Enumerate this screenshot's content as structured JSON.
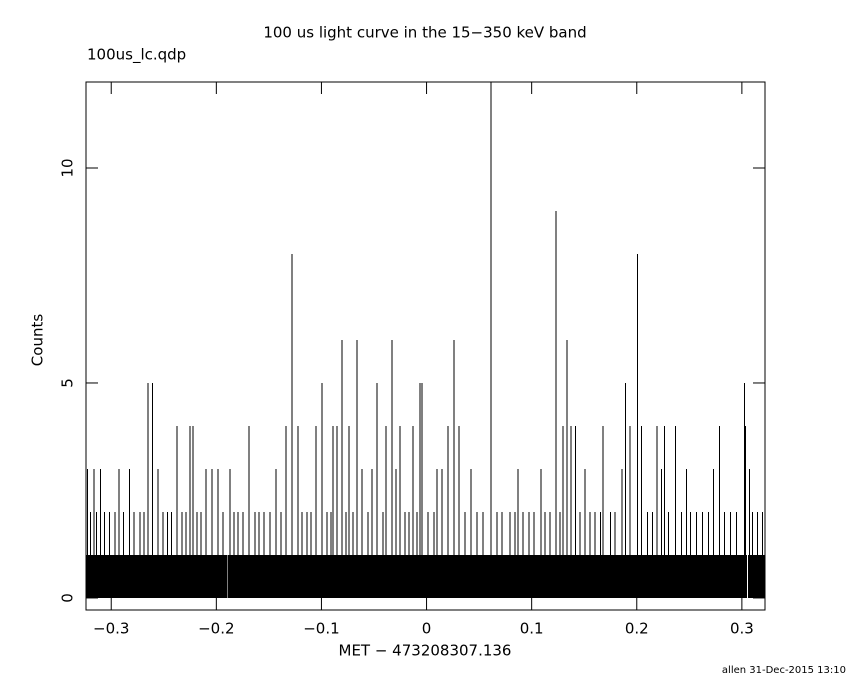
{
  "chart_data": {
    "type": "histogram-step",
    "title": "100 us light curve in the 15−350 keV band",
    "subtitle": "100us_lc.qdp",
    "x_label": "MET − 473208307.136",
    "y_label": "Counts",
    "footer": "allen 31-Dec-2015 13:10",
    "xlim": [
      -0.324,
      0.322
    ],
    "ylim": [
      -0.28,
      12
    ],
    "xticks": [
      {
        "value": -0.3,
        "label": "−0.3"
      },
      {
        "value": -0.2,
        "label": "−0.2"
      },
      {
        "value": -0.1,
        "label": "−0.1"
      },
      0,
      0.1,
      0.2,
      0.3
    ],
    "yticks": [
      0,
      5,
      10
    ],
    "color": "#000000",
    "x": [
      -0.324,
      -0.3229,
      -0.3225,
      -0.32,
      -0.3196,
      -0.3171,
      -0.3167,
      -0.3143,
      -0.3139,
      -0.3105,
      -0.3101,
      -0.3067,
      -0.3063,
      -0.3019,
      -0.3015,
      -0.2971,
      -0.2967,
      -0.2933,
      -0.2929,
      -0.2886,
      -0.2882,
      -0.2829,
      -0.2825,
      -0.279,
      -0.2786,
      -0.2733,
      -0.2729,
      -0.2695,
      -0.2691,
      -0.2657,
      -0.2653,
      -0.261,
      -0.2606,
      -0.2562,
      -0.2558,
      -0.2514,
      -0.251,
      -0.2467,
      -0.2463,
      -0.2429,
      -0.2425,
      -0.2381,
      -0.2377,
      -0.2333,
      -0.2329,
      -0.2295,
      -0.2291,
      -0.2257,
      -0.2253,
      -0.2229,
      -0.2225,
      -0.219,
      -0.2186,
      -0.2152,
      -0.2148,
      -0.2105,
      -0.2101,
      -0.2048,
      -0.2044,
      -0.199,
      -0.1986,
      -0.1943,
      -0.1939,
      -0.1895,
      -0.1887,
      -0.1876,
      -0.1872,
      -0.1838,
      -0.1834,
      -0.18,
      -0.1796,
      -0.1752,
      -0.1748,
      -0.1695,
      -0.1691,
      -0.1638,
      -0.1634,
      -0.16,
      -0.1596,
      -0.1552,
      -0.1548,
      -0.1495,
      -0.1491,
      -0.1438,
      -0.1434,
      -0.139,
      -0.1386,
      -0.1343,
      -0.1339,
      -0.1286,
      -0.1282,
      -0.1229,
      -0.1225,
      -0.119,
      -0.1186,
      -0.1143,
      -0.1139,
      -0.1105,
      -0.1101,
      -0.1057,
      -0.1053,
      -0.1,
      -0.0996,
      -0.0952,
      -0.0948,
      -0.0914,
      -0.091,
      -0.0895,
      -0.0891,
      -0.0857,
      -0.0853,
      -0.081,
      -0.0806,
      -0.0771,
      -0.0767,
      -0.0743,
      -0.0739,
      -0.0705,
      -0.0701,
      -0.0667,
      -0.0663,
      -0.0619,
      -0.0615,
      -0.0562,
      -0.0558,
      -0.0524,
      -0.052,
      -0.0476,
      -0.0472,
      -0.0419,
      -0.0415,
      -0.039,
      -0.0386,
      -0.0333,
      -0.0329,
      -0.0295,
      -0.0291,
      -0.0257,
      -0.0253,
      -0.021,
      -0.0206,
      -0.0171,
      -0.0167,
      -0.0133,
      -0.0129,
      -0.0095,
      -0.0091,
      -0.0067,
      -0.0063,
      -0.0048,
      -0.0044,
      0.001,
      0.0014,
      0.0067,
      0.0071,
      0.0095,
      0.0099,
      0.0143,
      0.0147,
      0.02,
      0.0204,
      0.0257,
      0.0261,
      0.0305,
      0.0309,
      0.0362,
      0.0366,
      0.0419,
      0.0423,
      0.0476,
      0.048,
      0.0533,
      0.0537,
      0.061,
      0.0614,
      0.0667,
      0.0671,
      0.0714,
      0.0718,
      0.079,
      0.0794,
      0.0838,
      0.0842,
      0.0867,
      0.0871,
      0.0914,
      0.0918,
      0.0971,
      0.0975,
      0.1019,
      0.1023,
      0.1086,
      0.109,
      0.1124,
      0.1128,
      0.1171,
      0.1175,
      0.1229,
      0.1233,
      0.1267,
      0.1271,
      0.1295,
      0.1299,
      0.1333,
      0.1337,
      0.1371,
      0.1375,
      0.141,
      0.1414,
      0.1457,
      0.1461,
      0.1505,
      0.1509,
      0.1552,
      0.1556,
      0.16,
      0.1604,
      0.1648,
      0.1652,
      0.1676,
      0.168,
      0.1743,
      0.1747,
      0.179,
      0.1794,
      0.1857,
      0.1861,
      0.1886,
      0.189,
      0.1933,
      0.1937,
      0.2,
      0.2004,
      0.2038,
      0.2042,
      0.2095,
      0.2099,
      0.2143,
      0.2147,
      0.219,
      0.2194,
      0.2229,
      0.2233,
      0.2257,
      0.2261,
      0.2295,
      0.2299,
      0.2362,
      0.2366,
      0.2419,
      0.2423,
      0.2467,
      0.2471,
      0.2505,
      0.2509,
      0.2562,
      0.2566,
      0.2619,
      0.2623,
      0.2676,
      0.268,
      0.2724,
      0.2728,
      0.2781,
      0.2785,
      0.2829,
      0.2833,
      0.2886,
      0.289,
      0.2943,
      0.2947,
      0.3019,
      0.3023,
      0.3029,
      0.3033,
      0.3048,
      0.3056,
      0.3067,
      0.3071,
      0.3095,
      0.3099,
      0.3143,
      0.3147,
      0.319,
      0.3194
    ],
    "values": [
      1,
      3,
      1,
      2,
      1,
      3,
      1,
      2,
      1,
      3,
      1,
      2,
      1,
      2,
      1,
      2,
      1,
      3,
      1,
      2,
      1,
      3,
      1,
      2,
      1,
      2,
      1,
      2,
      1,
      5,
      1,
      5,
      1,
      3,
      1,
      2,
      1,
      2,
      1,
      2,
      1,
      4,
      1,
      2,
      1,
      2,
      1,
      4,
      1,
      4,
      1,
      2,
      1,
      2,
      1,
      3,
      1,
      3,
      1,
      3,
      1,
      2,
      1,
      0,
      1,
      3,
      1,
      2,
      1,
      2,
      1,
      2,
      1,
      4,
      1,
      2,
      1,
      2,
      1,
      2,
      1,
      2,
      1,
      3,
      1,
      2,
      1,
      4,
      1,
      8,
      1,
      4,
      1,
      2,
      1,
      2,
      1,
      2,
      1,
      4,
      1,
      5,
      1,
      2,
      1,
      2,
      1,
      4,
      1,
      4,
      1,
      6,
      1,
      2,
      1,
      4,
      1,
      2,
      1,
      6,
      1,
      3,
      1,
      2,
      1,
      3,
      1,
      5,
      1,
      2,
      1,
      4,
      1,
      6,
      1,
      3,
      1,
      4,
      1,
      2,
      1,
      2,
      1,
      4,
      1,
      2,
      1,
      5,
      1,
      5,
      1,
      2,
      1,
      2,
      1,
      3,
      1,
      3,
      1,
      4,
      1,
      6,
      1,
      4,
      1,
      2,
      1,
      3,
      1,
      2,
      1,
      2,
      1,
      12,
      1,
      2,
      1,
      2,
      1,
      2,
      1,
      2,
      1,
      3,
      1,
      2,
      1,
      2,
      1,
      2,
      1,
      3,
      1,
      2,
      1,
      2,
      1,
      9,
      1,
      2,
      1,
      4,
      1,
      6,
      1,
      4,
      1,
      4,
      1,
      2,
      1,
      3,
      1,
      2,
      1,
      2,
      1,
      2,
      1,
      4,
      1,
      2,
      1,
      2,
      1,
      3,
      1,
      5,
      1,
      4,
      1,
      8,
      1,
      4,
      1,
      2,
      1,
      2,
      1,
      4,
      1,
      3,
      1,
      4,
      1,
      2,
      1,
      4,
      1,
      2,
      1,
      3,
      1,
      2,
      1,
      2,
      1,
      2,
      1,
      2,
      1,
      3,
      1,
      4,
      1,
      2,
      1,
      2,
      1,
      2,
      1,
      5,
      1,
      4,
      1,
      0,
      1,
      3,
      1,
      2,
      1,
      2,
      1,
      2,
      1
    ]
  }
}
